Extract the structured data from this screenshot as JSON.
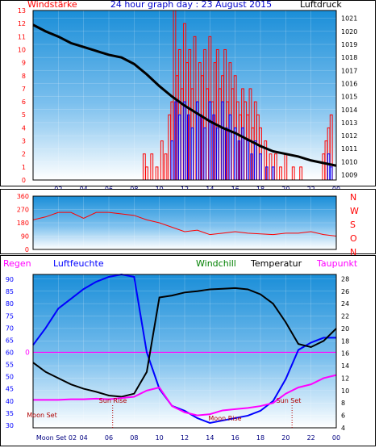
{
  "colors": {
    "red": "#ff0000",
    "blue": "#0000ff",
    "navy": "#000080",
    "green": "#008000",
    "magenta": "#ff00ff",
    "dark_red": "#b00000",
    "black": "#000000"
  },
  "chart_data": [
    {
      "type": "bar",
      "title": "24 hour graph day : 23 August 2015",
      "left_label": "Windstärke",
      "right_label": "Luftdruck",
      "x_ticks": [
        "02",
        "04",
        "06",
        "08",
        "10",
        "12",
        "14",
        "16",
        "18",
        "20",
        "22",
        "00"
      ],
      "y_left_ticks": [
        "0",
        "1",
        "2",
        "3",
        "4",
        "5",
        "6",
        "7",
        "8",
        "9",
        "10",
        "11",
        "12",
        "13"
      ],
      "y_left_range": [
        0,
        13
      ],
      "y_right_ticks": [
        "1009",
        "1010",
        "1011",
        "1012",
        "1013",
        "1014",
        "1015",
        "1016",
        "1017",
        "1018",
        "1019",
        "1020",
        "1021"
      ],
      "y_right_range": [
        1008.6,
        1021.6
      ],
      "x_range_hours": [
        0,
        24
      ],
      "wind_gust_bars": [
        [
          8.8,
          2
        ],
        [
          9.0,
          1
        ],
        [
          9.4,
          2
        ],
        [
          9.8,
          1
        ],
        [
          10.2,
          3
        ],
        [
          10.5,
          2
        ],
        [
          10.8,
          5
        ],
        [
          11.0,
          6
        ],
        [
          11.2,
          13
        ],
        [
          11.4,
          8
        ],
        [
          11.6,
          10
        ],
        [
          11.8,
          7
        ],
        [
          12.0,
          12
        ],
        [
          12.2,
          9
        ],
        [
          12.4,
          10
        ],
        [
          12.6,
          7
        ],
        [
          12.8,
          11
        ],
        [
          13.0,
          6
        ],
        [
          13.2,
          9
        ],
        [
          13.4,
          8
        ],
        [
          13.6,
          10
        ],
        [
          13.8,
          7
        ],
        [
          14.0,
          11
        ],
        [
          14.2,
          6
        ],
        [
          14.4,
          9
        ],
        [
          14.6,
          10
        ],
        [
          14.8,
          7
        ],
        [
          15.0,
          8
        ],
        [
          15.2,
          10
        ],
        [
          15.4,
          6
        ],
        [
          15.6,
          9
        ],
        [
          15.8,
          7
        ],
        [
          16.0,
          8
        ],
        [
          16.2,
          6
        ],
        [
          16.4,
          5
        ],
        [
          16.6,
          7
        ],
        [
          16.8,
          6
        ],
        [
          17.0,
          5
        ],
        [
          17.2,
          7
        ],
        [
          17.4,
          4
        ],
        [
          17.6,
          6
        ],
        [
          17.8,
          5
        ],
        [
          18.0,
          4
        ],
        [
          18.4,
          3
        ],
        [
          18.8,
          2
        ],
        [
          19.2,
          2
        ],
        [
          19.6,
          1
        ],
        [
          20.0,
          2
        ],
        [
          20.6,
          1
        ],
        [
          21.2,
          1
        ],
        [
          23.0,
          2
        ],
        [
          23.2,
          3
        ],
        [
          23.4,
          4
        ],
        [
          23.6,
          5
        ]
      ],
      "wind_avg_bars": [
        [
          11.0,
          3
        ],
        [
          11.3,
          6
        ],
        [
          11.6,
          5
        ],
        [
          12.0,
          6
        ],
        [
          12.3,
          5
        ],
        [
          12.6,
          4
        ],
        [
          13.0,
          6
        ],
        [
          13.3,
          5
        ],
        [
          13.6,
          4
        ],
        [
          14.0,
          6
        ],
        [
          14.3,
          5
        ],
        [
          14.6,
          4
        ],
        [
          15.0,
          6
        ],
        [
          15.3,
          4
        ],
        [
          15.6,
          5
        ],
        [
          16.0,
          4
        ],
        [
          16.3,
          3
        ],
        [
          16.6,
          4
        ],
        [
          17.0,
          3
        ],
        [
          17.3,
          2
        ],
        [
          17.6,
          3
        ],
        [
          18.0,
          2
        ],
        [
          18.5,
          1
        ],
        [
          19.0,
          1
        ],
        [
          23.4,
          2
        ],
        [
          23.6,
          1
        ]
      ],
      "pressure": [
        [
          0,
          1020.5
        ],
        [
          1,
          1020.0
        ],
        [
          2,
          1019.6
        ],
        [
          3,
          1019.1
        ],
        [
          4,
          1018.8
        ],
        [
          5,
          1018.5
        ],
        [
          6,
          1018.2
        ],
        [
          7,
          1018.0
        ],
        [
          8,
          1017.5
        ],
        [
          9,
          1016.7
        ],
        [
          10,
          1015.8
        ],
        [
          11,
          1015.0
        ],
        [
          12,
          1014.3
        ],
        [
          13,
          1013.7
        ],
        [
          14,
          1013.1
        ],
        [
          15,
          1012.6
        ],
        [
          16,
          1012.2
        ],
        [
          17,
          1011.7
        ],
        [
          18,
          1011.2
        ],
        [
          19,
          1010.8
        ],
        [
          20,
          1010.6
        ],
        [
          21,
          1010.4
        ],
        [
          22,
          1010.1
        ],
        [
          23,
          1009.9
        ],
        [
          24,
          1009.7
        ]
      ]
    },
    {
      "type": "line",
      "series_name": "Wind direction",
      "y_ticks": [
        "0",
        "90",
        "180",
        "270",
        "360"
      ],
      "y_range": [
        0,
        360
      ],
      "compass": [
        "N",
        "W",
        "S",
        "O",
        "N"
      ],
      "direction": [
        [
          0,
          200
        ],
        [
          1,
          220
        ],
        [
          2,
          250
        ],
        [
          3,
          250
        ],
        [
          4,
          210
        ],
        [
          5,
          250
        ],
        [
          6,
          250
        ],
        [
          7,
          240
        ],
        [
          8,
          230
        ],
        [
          9,
          200
        ],
        [
          10,
          180
        ],
        [
          11,
          150
        ],
        [
          12,
          120
        ],
        [
          13,
          130
        ],
        [
          14,
          100
        ],
        [
          15,
          110
        ],
        [
          16,
          120
        ],
        [
          17,
          110
        ],
        [
          18,
          105
        ],
        [
          19,
          100
        ],
        [
          20,
          110
        ],
        [
          21,
          110
        ],
        [
          22,
          120
        ],
        [
          23,
          100
        ],
        [
          24,
          90
        ]
      ]
    },
    {
      "type": "line",
      "legend": [
        "Regen",
        "Luftfeuchte",
        "Windchill",
        "Temperatur",
        "Taupunkt"
      ],
      "y_left_ticks": [
        "30",
        "35",
        "40",
        "45",
        "50",
        "55",
        "60",
        "65",
        "70",
        "75",
        "80",
        "85",
        "90"
      ],
      "y_left_range": [
        29,
        92
      ],
      "y_right_ticks": [
        "4",
        "6",
        "8",
        "10",
        "12",
        "14",
        "16",
        "18",
        "20",
        "22",
        "24",
        "26",
        "28"
      ],
      "y_right_range": [
        4,
        28.7
      ],
      "rain_zero_label": "0",
      "x_ticks": [
        "Moon Set 02",
        "04",
        "06",
        "08",
        "10",
        "12",
        "14",
        "16",
        "18",
        "20",
        "22",
        "00"
      ],
      "annotations": [
        "Moon Set",
        "Sun Rise",
        "Moon Rise",
        "Sun Set"
      ],
      "humidity": [
        [
          0,
          63
        ],
        [
          1,
          70
        ],
        [
          2,
          78
        ],
        [
          3,
          82
        ],
        [
          4,
          86
        ],
        [
          5,
          89
        ],
        [
          6,
          91
        ],
        [
          7,
          92
        ],
        [
          8,
          91
        ],
        [
          9,
          60
        ],
        [
          10,
          45
        ],
        [
          11,
          38
        ],
        [
          12,
          36
        ],
        [
          13,
          33
        ],
        [
          14,
          31
        ],
        [
          15,
          32
        ],
        [
          16,
          33
        ],
        [
          17,
          34
        ],
        [
          18,
          36
        ],
        [
          19,
          40
        ],
        [
          20,
          49
        ],
        [
          21,
          61
        ],
        [
          22,
          64
        ],
        [
          23,
          66
        ],
        [
          24,
          66
        ]
      ],
      "temperature": [
        [
          0,
          14.5
        ],
        [
          1,
          13.0
        ],
        [
          2,
          12.0
        ],
        [
          3,
          11.0
        ],
        [
          4,
          10.3
        ],
        [
          5,
          9.8
        ],
        [
          6,
          9.2
        ],
        [
          7,
          9.0
        ],
        [
          8,
          9.5
        ],
        [
          9,
          13.0
        ],
        [
          10,
          25.0
        ],
        [
          11,
          25.3
        ],
        [
          12,
          25.8
        ],
        [
          13,
          26.0
        ],
        [
          14,
          26.3
        ],
        [
          15,
          26.4
        ],
        [
          16,
          26.5
        ],
        [
          17,
          26.3
        ],
        [
          18,
          25.5
        ],
        [
          19,
          24.0
        ],
        [
          20,
          21.0
        ],
        [
          21,
          17.5
        ],
        [
          22,
          17.0
        ],
        [
          23,
          18.0
        ],
        [
          24,
          20.0
        ]
      ],
      "dew_point": [
        [
          0,
          8.5
        ],
        [
          1,
          8.5
        ],
        [
          2,
          8.5
        ],
        [
          3,
          8.6
        ],
        [
          4,
          8.6
        ],
        [
          5,
          8.7
        ],
        [
          6,
          8.6
        ],
        [
          7,
          8.8
        ],
        [
          8,
          9.0
        ],
        [
          9,
          10.0
        ],
        [
          10,
          10.5
        ],
        [
          11,
          7.5
        ],
        [
          12,
          6.5
        ],
        [
          13,
          6.0
        ],
        [
          14,
          6.2
        ],
        [
          15,
          6.8
        ],
        [
          16,
          7.0
        ],
        [
          17,
          7.2
        ],
        [
          18,
          7.5
        ],
        [
          19,
          8.0
        ],
        [
          20,
          9.5
        ],
        [
          21,
          10.5
        ],
        [
          22,
          11.0
        ],
        [
          23,
          12.0
        ],
        [
          24,
          12.5
        ]
      ]
    }
  ]
}
